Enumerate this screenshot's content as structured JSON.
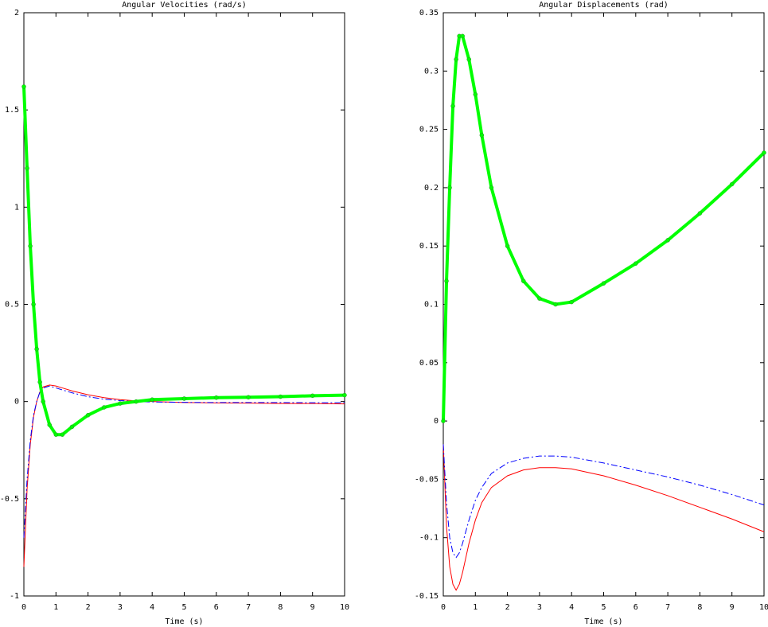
{
  "chart_data": [
    {
      "type": "line",
      "title": "Angular Velocities (rad/s)",
      "xlabel": "Time (s)",
      "x": [
        0,
        0.1,
        0.2,
        0.3,
        0.4,
        0.5,
        0.6,
        0.8,
        1.0,
        1.2,
        1.5,
        2,
        2.5,
        3,
        3.5,
        4,
        5,
        6,
        7,
        8,
        9,
        10
      ],
      "xlim": [
        0,
        10
      ],
      "xticks": [
        0,
        1,
        2,
        3,
        4,
        5,
        6,
        7,
        8,
        9,
        10
      ],
      "ylim": [
        -1,
        2
      ],
      "yticks": [
        -1,
        -0.5,
        0,
        0.5,
        1,
        1.5,
        2
      ],
      "series": [
        {
          "color": "#ff0000",
          "style": "solid",
          "width": 1,
          "marker": false,
          "values": [
            -0.85,
            -0.45,
            -0.22,
            -0.08,
            0.0,
            0.05,
            0.075,
            0.085,
            0.08,
            0.07,
            0.055,
            0.035,
            0.02,
            0.01,
            0.003,
            0.0,
            -0.005,
            -0.007,
            -0.008,
            -0.01,
            -0.01,
            -0.012
          ]
        },
        {
          "color": "#0000ff",
          "style": "dashdot",
          "width": 1,
          "marker": false,
          "values": [
            -0.7,
            -0.4,
            -0.2,
            -0.07,
            0.0,
            0.05,
            0.07,
            0.08,
            0.07,
            0.06,
            0.045,
            0.025,
            0.012,
            0.005,
            0.0,
            -0.002,
            -0.004,
            -0.005,
            -0.005,
            -0.005,
            -0.006,
            -0.006
          ]
        },
        {
          "color": "#00ff00",
          "style": "solid",
          "width": 4,
          "marker": true,
          "values": [
            1.62,
            1.2,
            0.8,
            0.5,
            0.27,
            0.1,
            0.0,
            -0.12,
            -0.17,
            -0.17,
            -0.13,
            -0.07,
            -0.03,
            -0.01,
            0.0,
            0.01,
            0.015,
            0.02,
            0.022,
            0.025,
            0.03,
            0.033
          ]
        }
      ]
    },
    {
      "type": "line",
      "title": "Angular Displacements (rad)",
      "xlabel": "Time (s)",
      "x": [
        0,
        0.1,
        0.2,
        0.3,
        0.4,
        0.5,
        0.6,
        0.8,
        1.0,
        1.2,
        1.5,
        2,
        2.5,
        3,
        3.5,
        4,
        5,
        6,
        7,
        8,
        9,
        10
      ],
      "xlim": [
        0,
        10
      ],
      "xticks": [
        0,
        1,
        2,
        3,
        4,
        5,
        6,
        7,
        8,
        9,
        10
      ],
      "ylim": [
        -0.15,
        0.35
      ],
      "yticks": [
        -0.15,
        -0.1,
        -0.05,
        0,
        0.05,
        0.1,
        0.15,
        0.2,
        0.25,
        0.3,
        0.35
      ],
      "series": [
        {
          "color": "#ff0000",
          "style": "solid",
          "width": 1,
          "marker": false,
          "values": [
            -0.02,
            -0.09,
            -0.125,
            -0.14,
            -0.145,
            -0.14,
            -0.13,
            -0.105,
            -0.085,
            -0.07,
            -0.057,
            -0.047,
            -0.042,
            -0.04,
            -0.04,
            -0.041,
            -0.047,
            -0.055,
            -0.064,
            -0.074,
            -0.084,
            -0.095
          ]
        },
        {
          "color": "#0000ff",
          "style": "dashdot",
          "width": 1,
          "marker": false,
          "values": [
            -0.02,
            -0.07,
            -0.1,
            -0.113,
            -0.117,
            -0.113,
            -0.105,
            -0.085,
            -0.068,
            -0.057,
            -0.045,
            -0.036,
            -0.032,
            -0.03,
            -0.03,
            -0.031,
            -0.036,
            -0.042,
            -0.048,
            -0.055,
            -0.063,
            -0.072
          ]
        },
        {
          "color": "#00ff00",
          "style": "solid",
          "width": 4,
          "marker": true,
          "values": [
            0,
            0.12,
            0.2,
            0.27,
            0.31,
            0.33,
            0.33,
            0.31,
            0.28,
            0.245,
            0.2,
            0.15,
            0.12,
            0.105,
            0.1,
            0.102,
            0.118,
            0.135,
            0.155,
            0.178,
            0.203,
            0.23
          ]
        }
      ]
    }
  ]
}
